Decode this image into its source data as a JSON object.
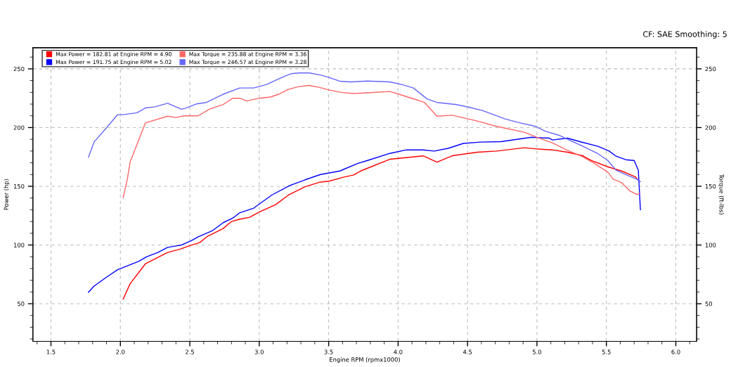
{
  "chart_data": {
    "type": "line",
    "xlabel": "Engine RPM (rpmx1000)",
    "ylabel": "Power (hp)",
    "y2label": "Torque (ft-lbs)",
    "annotations": [
      "CF: SAE Smoothing: 5"
    ],
    "xlim": [
      1.37,
      6.15
    ],
    "xticks": [
      {
        "value": 1.4,
        "label": null
      },
      {
        "value": 1.5,
        "label": "1.5"
      },
      {
        "value": 1.6,
        "label": null
      },
      {
        "value": 1.7,
        "label": null
      },
      {
        "value": 1.8,
        "label": null
      },
      {
        "value": 1.9,
        "label": null
      },
      {
        "value": 2.0,
        "label": "2.0"
      },
      {
        "value": 2.1,
        "label": null
      },
      {
        "value": 2.2,
        "label": null
      },
      {
        "value": 2.3,
        "label": null
      },
      {
        "value": 2.4,
        "label": null
      },
      {
        "value": 2.5,
        "label": "2.5"
      },
      {
        "value": 2.6,
        "label": null
      },
      {
        "value": 2.7,
        "label": null
      },
      {
        "value": 2.8,
        "label": null
      },
      {
        "value": 2.9,
        "label": null
      },
      {
        "value": 3.0,
        "label": "3.0"
      },
      {
        "value": 3.1,
        "label": null
      },
      {
        "value": 3.2,
        "label": null
      },
      {
        "value": 3.3,
        "label": null
      },
      {
        "value": 3.4,
        "label": null
      },
      {
        "value": 3.5,
        "label": "3.5"
      },
      {
        "value": 3.6,
        "label": null
      },
      {
        "value": 3.7,
        "label": null
      },
      {
        "value": 3.8,
        "label": null
      },
      {
        "value": 3.9,
        "label": null
      },
      {
        "value": 4.0,
        "label": "4.0"
      },
      {
        "value": 4.1,
        "label": null
      },
      {
        "value": 4.2,
        "label": null
      },
      {
        "value": 4.3,
        "label": null
      },
      {
        "value": 4.4,
        "label": null
      },
      {
        "value": 4.5,
        "label": "4.5"
      },
      {
        "value": 4.6,
        "label": null
      },
      {
        "value": 4.7,
        "label": null
      },
      {
        "value": 4.8,
        "label": null
      },
      {
        "value": 4.9,
        "label": null
      },
      {
        "value": 5.0,
        "label": "5.0"
      },
      {
        "value": 5.1,
        "label": null
      },
      {
        "value": 5.2,
        "label": null
      },
      {
        "value": 5.3,
        "label": null
      },
      {
        "value": 5.4,
        "label": null
      },
      {
        "value": 5.5,
        "label": "5.5"
      },
      {
        "value": 5.6,
        "label": null
      },
      {
        "value": 5.7,
        "label": null
      },
      {
        "value": 5.8,
        "label": null
      },
      {
        "value": 5.9,
        "label": null
      },
      {
        "value": 6.0,
        "label": "6.0"
      },
      {
        "value": 6.1,
        "label": null
      }
    ],
    "ylim": [
      18,
      268
    ],
    "yticks": [
      {
        "value": 20,
        "label": null
      },
      {
        "value": 30,
        "label": null
      },
      {
        "value": 40,
        "label": null
      },
      50,
      {
        "value": 60,
        "label": null
      },
      {
        "value": 70,
        "label": null
      },
      {
        "value": 80,
        "label": null
      },
      {
        "value": 90,
        "label": null
      },
      100,
      {
        "value": 110,
        "label": null
      },
      {
        "value": 120,
        "label": null
      },
      {
        "value": 130,
        "label": null
      },
      {
        "value": 140,
        "label": null
      },
      150,
      {
        "value": 160,
        "label": null
      },
      {
        "value": 170,
        "label": null
      },
      {
        "value": 180,
        "label": null
      },
      {
        "value": 190,
        "label": null
      },
      200,
      {
        "value": 210,
        "label": null
      },
      {
        "value": 220,
        "label": null
      },
      {
        "value": 230,
        "label": null
      },
      {
        "value": 240,
        "label": null
      },
      250,
      {
        "value": 260,
        "label": null
      }
    ],
    "y2lim": [
      18,
      268
    ],
    "y2ticks": [
      {
        "value": 20,
        "label": null
      },
      {
        "value": 30,
        "label": null
      },
      {
        "value": 40,
        "label": null
      },
      50,
      {
        "value": 60,
        "label": null
      },
      {
        "value": 70,
        "label": null
      },
      {
        "value": 80,
        "label": null
      },
      {
        "value": 90,
        "label": null
      },
      100,
      {
        "value": 110,
        "label": null
      },
      {
        "value": 120,
        "label": null
      },
      {
        "value": 130,
        "label": null
      },
      {
        "value": 140,
        "label": null
      },
      150,
      {
        "value": 160,
        "label": null
      },
      {
        "value": 170,
        "label": null
      },
      {
        "value": 180,
        "label": null
      },
      {
        "value": 190,
        "label": null
      },
      200,
      {
        "value": 210,
        "label": null
      },
      {
        "value": 220,
        "label": null
      },
      {
        "value": 230,
        "label": null
      },
      {
        "value": 240,
        "label": null
      },
      250,
      {
        "value": 260,
        "label": null
      }
    ],
    "grid": true,
    "legend": "top left",
    "marker": "none",
    "line_style": "solid",
    "series": [
      {
        "name": "Max Power = 182.81 at Engine RPM = 4.90",
        "color": "#ff0000",
        "x": [
          2.02,
          2.07,
          2.18,
          2.34,
          2.43,
          2.5,
          2.57,
          2.63,
          2.74,
          2.8,
          2.86,
          2.93,
          3.0,
          3.12,
          3.21,
          3.33,
          3.44,
          3.5,
          3.61,
          3.68,
          3.73,
          3.78,
          3.94,
          4.18,
          4.28,
          4.39,
          4.57,
          4.71,
          4.91,
          5.01,
          5.11,
          5.22,
          5.33,
          5.39,
          5.51,
          5.61,
          5.71,
          5.73
        ],
        "values": [
          54,
          67,
          84,
          93.6,
          96.5,
          99.5,
          102,
          107.6,
          114,
          120,
          122,
          123.6,
          128,
          134.5,
          142.5,
          149.6,
          153.6,
          154.3,
          157.8,
          159.6,
          163,
          165.4,
          173,
          175.9,
          170.6,
          176,
          179,
          180,
          182.8,
          181.7,
          181,
          179,
          176,
          172,
          166.6,
          163,
          158,
          155
        ]
      },
      {
        "name": "Max Power = 191.75 at Engine RPM = 5.02",
        "color": "#0000ff",
        "x": [
          1.77,
          1.81,
          1.9,
          1.98,
          2.13,
          2.19,
          2.27,
          2.34,
          2.44,
          2.51,
          2.56,
          2.66,
          2.74,
          2.81,
          2.86,
          2.96,
          3.09,
          3.22,
          3.33,
          3.44,
          3.58,
          3.71,
          3.78,
          3.94,
          4.06,
          4.18,
          4.26,
          4.36,
          4.47,
          4.59,
          4.74,
          4.96,
          5.09,
          5.11,
          5.22,
          5.31,
          5.44,
          5.52,
          5.57,
          5.64,
          5.7,
          5.73,
          5.745
        ],
        "values": [
          59.7,
          65,
          72.6,
          79,
          86,
          90,
          93.6,
          98,
          100,
          103.6,
          107,
          112,
          119,
          122.9,
          127.5,
          131.4,
          142.5,
          150.6,
          155.5,
          160,
          163,
          169.5,
          172,
          178,
          181,
          181,
          180,
          182.3,
          186.5,
          187.6,
          188,
          191.7,
          191,
          189.4,
          191,
          188,
          184,
          180,
          175.6,
          172.6,
          172,
          163.8,
          130
        ]
      },
      {
        "name": "Max Torque = 235.88 at Engine RPM = 3.36",
        "color": "#ff6666",
        "axis": "y2",
        "x": [
          2.02,
          2.05,
          2.07,
          2.18,
          2.34,
          2.4,
          2.46,
          2.56,
          2.64,
          2.74,
          2.81,
          2.86,
          2.91,
          3.0,
          3.08,
          3.14,
          3.21,
          3.28,
          3.36,
          3.44,
          3.51,
          3.59,
          3.68,
          3.78,
          3.94,
          3.99,
          4.11,
          4.19,
          4.28,
          4.39,
          4.57,
          4.71,
          4.91,
          5.01,
          5.11,
          5.22,
          5.32,
          5.41,
          5.51,
          5.55,
          5.61,
          5.67,
          5.72,
          5.74
        ],
        "values": [
          140.3,
          156,
          170.6,
          203.9,
          209.7,
          208.6,
          210,
          210,
          215.6,
          219.6,
          225,
          225,
          222.6,
          225,
          226,
          228.4,
          232.5,
          234.8,
          235.9,
          234,
          231.8,
          230,
          229,
          229.6,
          230.7,
          229,
          224.5,
          221.4,
          209.7,
          210.5,
          205.6,
          201,
          196,
          191.2,
          187,
          180.6,
          175.6,
          169.8,
          162,
          156,
          153,
          146,
          143,
          144
        ]
      },
      {
        "name": "Max Torque = 246.57 at Engine RPM = 3.28",
        "color": "#6666ff",
        "axis": "y2",
        "x": [
          1.77,
          1.81,
          1.9,
          1.98,
          2.02,
          2.12,
          2.18,
          2.25,
          2.34,
          2.44,
          2.47,
          2.55,
          2.62,
          2.74,
          2.86,
          2.96,
          3.05,
          3.18,
          3.23,
          3.29,
          3.36,
          3.44,
          3.51,
          3.58,
          3.66,
          3.78,
          3.94,
          4.03,
          4.11,
          4.21,
          4.28,
          4.42,
          4.51,
          4.61,
          4.77,
          4.86,
          4.99,
          5.06,
          5.16,
          5.22,
          5.31,
          5.44,
          5.51,
          5.57,
          5.64,
          5.72,
          5.745
        ],
        "values": [
          174.7,
          187.6,
          199.8,
          211,
          211,
          212.6,
          216.7,
          217.7,
          220.7,
          215.6,
          216.5,
          220.2,
          221.4,
          228.4,
          233.7,
          233.7,
          236.6,
          243.6,
          245.9,
          246.5,
          246.5,
          244.8,
          242.4,
          239.5,
          238.9,
          239.6,
          238.9,
          236.6,
          233.7,
          224.3,
          221.4,
          219.6,
          217.3,
          214.4,
          207.4,
          204.5,
          201,
          196.9,
          193.4,
          190,
          185.2,
          177.7,
          172,
          163.7,
          160,
          156,
          154
        ]
      }
    ]
  }
}
